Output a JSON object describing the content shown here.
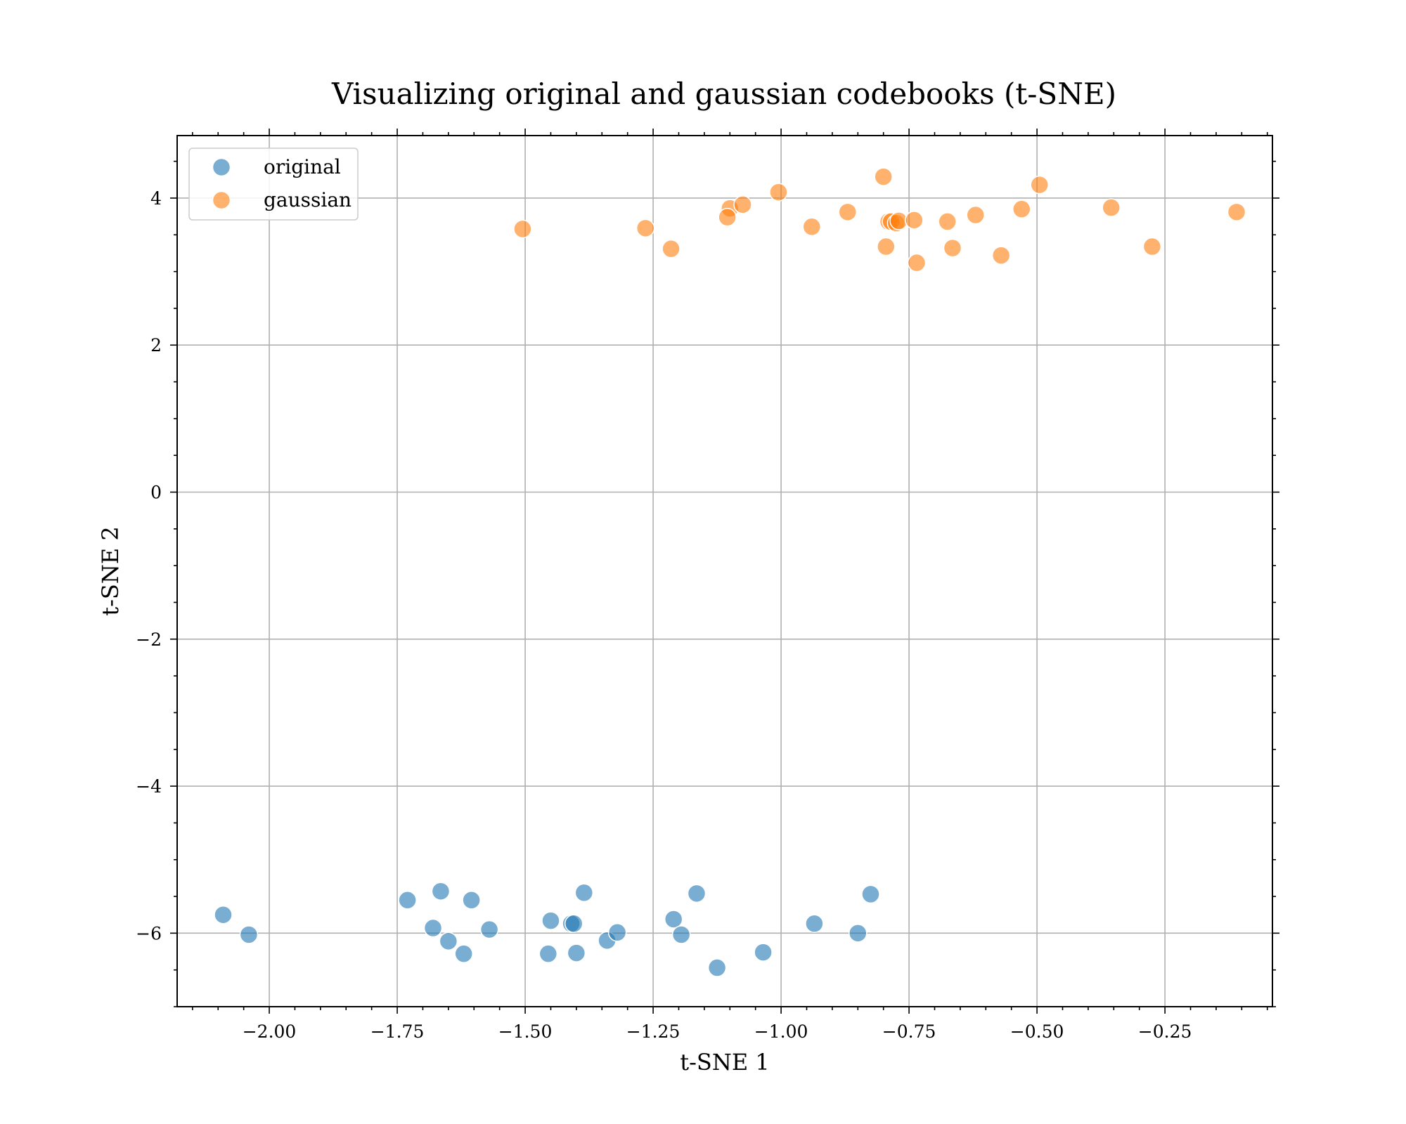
{
  "chart_data": {
    "type": "scatter",
    "title": "Visualizing original and gaussian codebooks (t-SNE)",
    "xlabel": "t-SNE 1",
    "ylabel": "t-SNE 2",
    "xlim": [
      -2.18,
      -0.04
    ],
    "ylim": [
      -7.0,
      4.85
    ],
    "xticks": [
      -2.0,
      -1.75,
      -1.5,
      -1.25,
      -1.0,
      -0.75,
      -0.5,
      -0.25
    ],
    "xtick_labels": [
      "−2.00",
      "−1.75",
      "−1.50",
      "−1.25",
      "−1.00",
      "−0.75",
      "−0.50",
      "−0.25"
    ],
    "yticks": [
      4,
      2,
      0,
      -2,
      -4,
      -6
    ],
    "ytick_labels": [
      "4",
      "2",
      "0",
      "−2",
      "−4",
      "−6"
    ],
    "grid": true,
    "legend_position": "top-left",
    "series": [
      {
        "name": "original",
        "color": "#1f77b4",
        "points": [
          [
            -2.09,
            -5.75
          ],
          [
            -2.04,
            -6.02
          ],
          [
            -1.73,
            -5.55
          ],
          [
            -1.665,
            -5.43
          ],
          [
            -1.68,
            -5.93
          ],
          [
            -1.65,
            -6.11
          ],
          [
            -1.62,
            -6.28
          ],
          [
            -1.605,
            -5.55
          ],
          [
            -1.57,
            -5.95
          ],
          [
            -1.45,
            -5.83
          ],
          [
            -1.455,
            -6.28
          ],
          [
            -1.41,
            -5.87
          ],
          [
            -1.405,
            -5.87
          ],
          [
            -1.4,
            -6.27
          ],
          [
            -1.385,
            -5.45
          ],
          [
            -1.34,
            -6.1
          ],
          [
            -1.32,
            -5.99
          ],
          [
            -1.21,
            -5.81
          ],
          [
            -1.195,
            -6.02
          ],
          [
            -1.165,
            -5.46
          ],
          [
            -1.125,
            -6.47
          ],
          [
            -1.035,
            -6.26
          ],
          [
            -0.935,
            -5.87
          ],
          [
            -0.85,
            -6.0
          ],
          [
            -0.825,
            -5.47
          ]
        ]
      },
      {
        "name": "gaussian",
        "color": "#ff7f0e",
        "points": [
          [
            -1.505,
            3.58
          ],
          [
            -1.265,
            3.59
          ],
          [
            -1.215,
            3.31
          ],
          [
            -1.1,
            3.86
          ],
          [
            -1.105,
            3.74
          ],
          [
            -1.075,
            3.91
          ],
          [
            -1.005,
            4.08
          ],
          [
            -0.94,
            3.61
          ],
          [
            -0.87,
            3.81
          ],
          [
            -0.8,
            4.29
          ],
          [
            -0.795,
            3.34
          ],
          [
            -0.79,
            3.68
          ],
          [
            -0.785,
            3.68
          ],
          [
            -0.775,
            3.66
          ],
          [
            -0.77,
            3.69
          ],
          [
            -0.74,
            3.7
          ],
          [
            -0.735,
            3.12
          ],
          [
            -0.675,
            3.68
          ],
          [
            -0.665,
            3.32
          ],
          [
            -0.62,
            3.77
          ],
          [
            -0.57,
            3.22
          ],
          [
            -0.53,
            3.85
          ],
          [
            -0.495,
            4.18
          ],
          [
            -0.355,
            3.87
          ],
          [
            -0.275,
            3.34
          ],
          [
            -0.11,
            3.81
          ]
        ]
      }
    ]
  }
}
